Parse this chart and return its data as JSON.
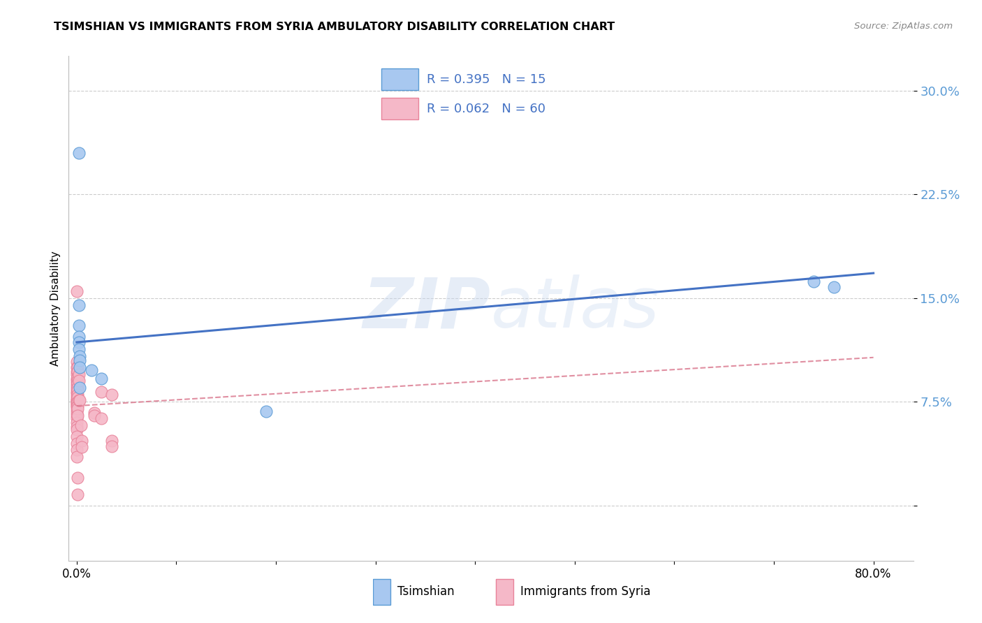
{
  "title": "TSIMSHIAN VS IMMIGRANTS FROM SYRIA AMBULATORY DISABILITY CORRELATION CHART",
  "source": "Source: ZipAtlas.com",
  "ylabel": "Ambulatory Disability",
  "yticks": [
    0.0,
    0.075,
    0.15,
    0.225,
    0.3
  ],
  "ytick_labels": [
    "",
    "7.5%",
    "15.0%",
    "22.5%",
    "30.0%"
  ],
  "xlim": [
    -0.008,
    0.84
  ],
  "ylim": [
    -0.04,
    0.325
  ],
  "watermark_zip": "ZIP",
  "watermark_atlas": "atlas",
  "legend_R1": "R = 0.395",
  "legend_N1": "N = 15",
  "legend_R2": "R = 0.062",
  "legend_N2": "N = 60",
  "tsimshian_color": "#A8C8F0",
  "syria_color": "#F5B8C8",
  "tsimshian_edge_color": "#5B9BD5",
  "syria_edge_color": "#E8839A",
  "tsimshian_line_color": "#4472C4",
  "syria_line_color": "#D9738A",
  "legend_text_color": "#4472C4",
  "ytick_color": "#5B9BD5",
  "background_color": "#FFFFFF",
  "grid_color": "#CCCCCC",
  "tsimshian_scatter": [
    [
      0.002,
      0.255
    ],
    [
      0.002,
      0.145
    ],
    [
      0.002,
      0.13
    ],
    [
      0.002,
      0.122
    ],
    [
      0.002,
      0.118
    ],
    [
      0.002,
      0.113
    ],
    [
      0.003,
      0.108
    ],
    [
      0.003,
      0.105
    ],
    [
      0.003,
      0.1
    ],
    [
      0.015,
      0.098
    ],
    [
      0.025,
      0.092
    ],
    [
      0.19,
      0.068
    ],
    [
      0.74,
      0.162
    ],
    [
      0.76,
      0.158
    ],
    [
      0.003,
      0.085
    ]
  ],
  "syria_scatter": [
    [
      0.0,
      0.155
    ],
    [
      0.0,
      0.104
    ],
    [
      0.0,
      0.1
    ],
    [
      0.0,
      0.097
    ],
    [
      0.0,
      0.095
    ],
    [
      0.0,
      0.092
    ],
    [
      0.0,
      0.09
    ],
    [
      0.0,
      0.088
    ],
    [
      0.0,
      0.086
    ],
    [
      0.0,
      0.084
    ],
    [
      0.0,
      0.082
    ],
    [
      0.0,
      0.081
    ],
    [
      0.0,
      0.079
    ],
    [
      0.0,
      0.077
    ],
    [
      0.0,
      0.076
    ],
    [
      0.0,
      0.075
    ],
    [
      0.0,
      0.074
    ],
    [
      0.0,
      0.073
    ],
    [
      0.0,
      0.072
    ],
    [
      0.0,
      0.071
    ],
    [
      0.0,
      0.069
    ],
    [
      0.0,
      0.067
    ],
    [
      0.0,
      0.065
    ],
    [
      0.0,
      0.063
    ],
    [
      0.0,
      0.06
    ],
    [
      0.0,
      0.057
    ],
    [
      0.0,
      0.055
    ],
    [
      0.0,
      0.05
    ],
    [
      0.0,
      0.045
    ],
    [
      0.0,
      0.04
    ],
    [
      0.0,
      0.035
    ],
    [
      0.001,
      0.1
    ],
    [
      0.001,
      0.097
    ],
    [
      0.001,
      0.093
    ],
    [
      0.001,
      0.09
    ],
    [
      0.001,
      0.088
    ],
    [
      0.001,
      0.085
    ],
    [
      0.001,
      0.083
    ],
    [
      0.001,
      0.08
    ],
    [
      0.001,
      0.078
    ],
    [
      0.001,
      0.075
    ],
    [
      0.001,
      0.072
    ],
    [
      0.001,
      0.07
    ],
    [
      0.001,
      0.065
    ],
    [
      0.002,
      0.095
    ],
    [
      0.002,
      0.09
    ],
    [
      0.002,
      0.076
    ],
    [
      0.003,
      0.076
    ],
    [
      0.004,
      0.058
    ],
    [
      0.005,
      0.047
    ],
    [
      0.005,
      0.042
    ],
    [
      0.018,
      0.067
    ],
    [
      0.018,
      0.065
    ],
    [
      0.025,
      0.082
    ],
    [
      0.025,
      0.063
    ],
    [
      0.035,
      0.08
    ],
    [
      0.035,
      0.047
    ],
    [
      0.035,
      0.043
    ],
    [
      0.001,
      0.02
    ],
    [
      0.001,
      0.008
    ]
  ],
  "ts_line_x": [
    0.0,
    0.8
  ],
  "ts_line_y": [
    0.118,
    0.168
  ],
  "sy_line_x": [
    0.0,
    0.8
  ],
  "sy_line_y": [
    0.072,
    0.107
  ]
}
